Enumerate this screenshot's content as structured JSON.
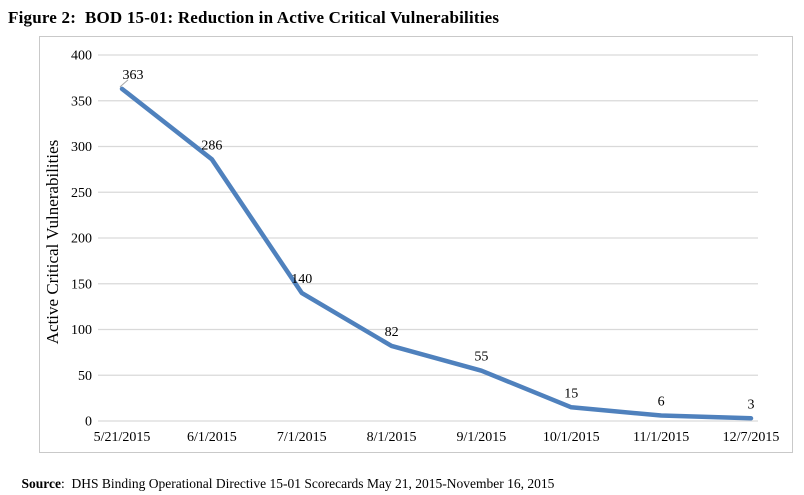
{
  "figure_title": "Figure 2:  BOD 15-01: Reduction in Active Critical Vulnerabilities",
  "source": {
    "label": "Source",
    "separator": ":  ",
    "text": "DHS Binding Operational Directive 15-01 Scorecards May 21, 2015-November 16, 2015"
  },
  "chart_data": {
    "type": "line",
    "title": "Figure 2:  BOD 15-01: Reduction in Active Critical Vulnerabilities",
    "categories": [
      "5/21/2015",
      "6/1/2015",
      "7/1/2015",
      "8/1/2015",
      "9/1/2015",
      "10/1/2015",
      "11/1/2015",
      "12/7/2015"
    ],
    "series": [
      {
        "name": "Active Critical Vulnerabilities",
        "values": [
          363,
          286,
          140,
          82,
          55,
          15,
          6,
          3
        ]
      }
    ],
    "data_labels": [
      363,
      286,
      140,
      82,
      55,
      15,
      6,
      3
    ],
    "xlabel": "",
    "ylabel": "Active Critical Vulnerabilities",
    "ylim": [
      0,
      400
    ],
    "yticks": [
      0,
      50,
      100,
      150,
      200,
      250,
      300,
      350,
      400
    ],
    "grid": true,
    "legend": false,
    "line_color": "#4F81BD",
    "gridline_color": "#D9D9D9",
    "leader_line_color": "#A6A6A6",
    "frame_border_color": "#C9C9C9",
    "text_color": "#000000"
  }
}
